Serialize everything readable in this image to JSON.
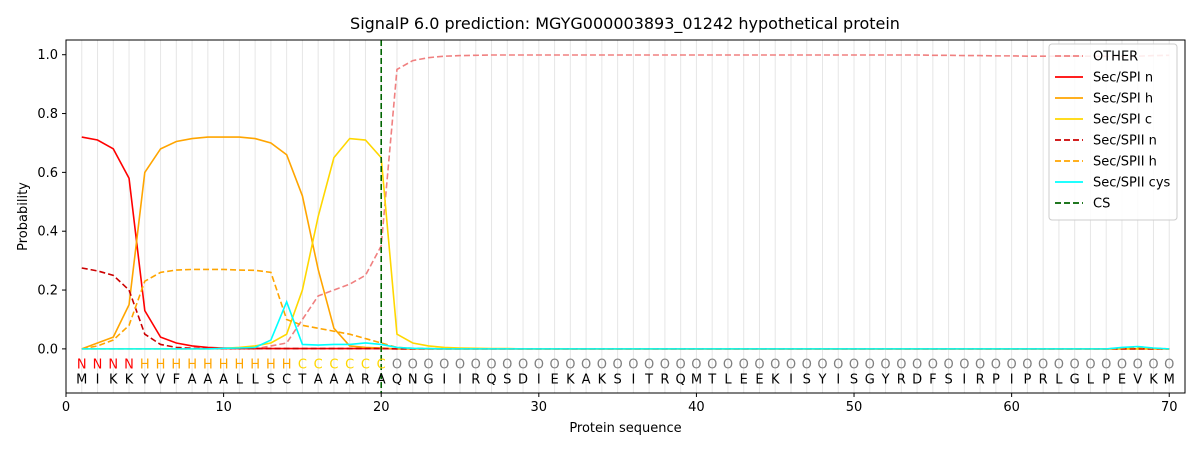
{
  "chart_data": {
    "type": "line",
    "title": "SignalP 6.0 prediction: MGYG000003893_01242 hypothetical protein",
    "xlabel": "Protein sequence",
    "ylabel": "Probability",
    "xlim": [
      0,
      71
    ],
    "ylim": [
      -0.15,
      1.05
    ],
    "xticks": [
      0,
      10,
      20,
      30,
      40,
      50,
      60,
      70
    ],
    "yticks": [
      0.0,
      0.2,
      0.4,
      0.6,
      0.8,
      1.0
    ],
    "ytick_labels": [
      "0.0",
      "0.2",
      "0.4",
      "0.6",
      "0.8",
      "1.0"
    ],
    "vertical_grid": true,
    "legend_position": "top-right",
    "sequence": "MIKKYVFAAALLSCTAAARAQNGIIRQSDIEKAKSITRQMTLEEKISYISGYRDFSIRPIPRLGLPEVKM",
    "region_labels": "NNNNHHHHHHHHHHCCCCCCOOOOOOOOOOOOOOOOOOOOOOOOOOOOOOOOOOOOOOOOOOOOOOOOOO",
    "region_colors": {
      "N": "#ff0000",
      "H": "#ffa500",
      "C": "#ffd700",
      "O": "#808080"
    },
    "cleavage_site": 20,
    "series": [
      {
        "name": "OTHER",
        "color": "#f08080",
        "dash": "dashed",
        "values": [
          0.0,
          0.0,
          0.0,
          0.0,
          0.0,
          0.0,
          0.0,
          0.0,
          0.0,
          0.0,
          0.0,
          0.0,
          0.01,
          0.02,
          0.1,
          0.18,
          0.2,
          0.22,
          0.25,
          0.35,
          0.95,
          0.98,
          0.99,
          0.995,
          0.997,
          0.998,
          0.999,
          0.999,
          0.999,
          0.999,
          0.999,
          0.999,
          0.999,
          0.999,
          0.999,
          0.999,
          0.999,
          0.999,
          0.999,
          0.999,
          0.999,
          0.999,
          0.999,
          0.999,
          0.999,
          0.999,
          0.999,
          0.999,
          0.999,
          0.999,
          0.999,
          0.999,
          0.999,
          0.999,
          0.998,
          0.998,
          0.997,
          0.997,
          0.996,
          0.996,
          0.995,
          0.995,
          0.995,
          0.995,
          0.995,
          0.995,
          0.995,
          0.995,
          0.997,
          0.998
        ]
      },
      {
        "name": "Sec/SPI n",
        "color": "#ff0000",
        "dash": "solid",
        "values": [
          0.72,
          0.71,
          0.68,
          0.58,
          0.13,
          0.04,
          0.02,
          0.01,
          0.005,
          0.003,
          0.002,
          0.001,
          0.001,
          0.001,
          0.001,
          0.001,
          0.001,
          0.001,
          0.001,
          0.001,
          0,
          0,
          0,
          0,
          0,
          0,
          0,
          0,
          0,
          0,
          0,
          0,
          0,
          0,
          0,
          0,
          0,
          0,
          0,
          0,
          0,
          0,
          0,
          0,
          0,
          0,
          0,
          0,
          0,
          0,
          0,
          0,
          0,
          0,
          0,
          0,
          0,
          0,
          0,
          0,
          0,
          0,
          0,
          0,
          0,
          0,
          0,
          0,
          0,
          0
        ]
      },
      {
        "name": "Sec/SPI h",
        "color": "#ffa500",
        "dash": "solid",
        "values": [
          0.0,
          0.02,
          0.04,
          0.15,
          0.6,
          0.68,
          0.705,
          0.715,
          0.72,
          0.72,
          0.72,
          0.715,
          0.7,
          0.66,
          0.52,
          0.27,
          0.07,
          0.01,
          0.005,
          0.003,
          0.0,
          0.0,
          0,
          0,
          0,
          0,
          0,
          0,
          0,
          0,
          0,
          0,
          0,
          0,
          0,
          0,
          0,
          0,
          0,
          0,
          0,
          0,
          0,
          0,
          0,
          0,
          0,
          0,
          0,
          0,
          0,
          0,
          0,
          0,
          0,
          0,
          0,
          0,
          0,
          0,
          0,
          0,
          0,
          0,
          0,
          0,
          0,
          0,
          0,
          0
        ]
      },
      {
        "name": "Sec/SPI c",
        "color": "#ffd700",
        "dash": "solid",
        "values": [
          0,
          0,
          0,
          0,
          0,
          0,
          0,
          0,
          0,
          0.002,
          0.005,
          0.01,
          0.02,
          0.05,
          0.2,
          0.45,
          0.65,
          0.715,
          0.71,
          0.65,
          0.05,
          0.02,
          0.01,
          0.005,
          0.003,
          0.002,
          0.001,
          0.001,
          0,
          0,
          0,
          0,
          0,
          0,
          0,
          0,
          0,
          0,
          0,
          0,
          0,
          0,
          0,
          0,
          0,
          0,
          0,
          0,
          0,
          0,
          0,
          0,
          0,
          0,
          0,
          0,
          0,
          0,
          0,
          0,
          0,
          0,
          0,
          0,
          0,
          0,
          0,
          0,
          0,
          0
        ]
      },
      {
        "name": "Sec/SPII n",
        "color": "#cc0000",
        "dash": "dashed",
        "values": [
          0.275,
          0.265,
          0.25,
          0.2,
          0.05,
          0.015,
          0.005,
          0.002,
          0.001,
          0.001,
          0.001,
          0.001,
          0.001,
          0.001,
          0.001,
          0.001,
          0.001,
          0.001,
          0.001,
          0.001,
          0,
          0,
          0,
          0,
          0,
          0,
          0,
          0,
          0,
          0,
          0,
          0,
          0,
          0,
          0,
          0,
          0,
          0,
          0,
          0,
          0,
          0,
          0,
          0,
          0,
          0,
          0,
          0,
          0,
          0,
          0,
          0,
          0,
          0,
          0,
          0,
          0,
          0,
          0,
          0,
          0,
          0,
          0,
          0,
          0,
          0,
          0,
          0,
          0,
          0
        ]
      },
      {
        "name": "Sec/SPII h",
        "color": "#ffa500",
        "dash": "dashed",
        "values": [
          0.0,
          0.01,
          0.03,
          0.08,
          0.23,
          0.26,
          0.268,
          0.27,
          0.27,
          0.27,
          0.268,
          0.267,
          0.26,
          0.1,
          0.08,
          0.07,
          0.06,
          0.05,
          0.035,
          0.02,
          0.005,
          0.002,
          0.001,
          0,
          0,
          0,
          0,
          0,
          0,
          0,
          0,
          0,
          0,
          0,
          0,
          0,
          0,
          0,
          0,
          0,
          0,
          0,
          0,
          0,
          0,
          0,
          0,
          0,
          0,
          0,
          0,
          0,
          0,
          0,
          0,
          0,
          0,
          0,
          0,
          0,
          0,
          0,
          0,
          0,
          0,
          0,
          0.003,
          0.005,
          0.002,
          0.0
        ]
      },
      {
        "name": "Sec/SPII cys",
        "color": "#00ffff",
        "dash": "solid",
        "values": [
          0,
          0,
          0,
          0,
          0,
          0,
          0,
          0,
          0,
          0.002,
          0.003,
          0.005,
          0.03,
          0.16,
          0.015,
          0.013,
          0.015,
          0.015,
          0.02,
          0.015,
          0.005,
          0.002,
          0.001,
          0,
          0,
          0,
          0,
          0,
          0,
          0,
          0,
          0,
          0,
          0,
          0,
          0,
          0,
          0,
          0,
          0,
          0,
          0,
          0,
          0,
          0,
          0,
          0,
          0,
          0,
          0,
          0,
          0,
          0,
          0,
          0,
          0,
          0,
          0,
          0,
          0,
          0,
          0,
          0,
          0,
          0,
          0,
          0.005,
          0.008,
          0.003,
          0.0
        ]
      },
      {
        "name": "CS",
        "color": "#006400",
        "dash": "dashed",
        "values": []
      }
    ]
  }
}
